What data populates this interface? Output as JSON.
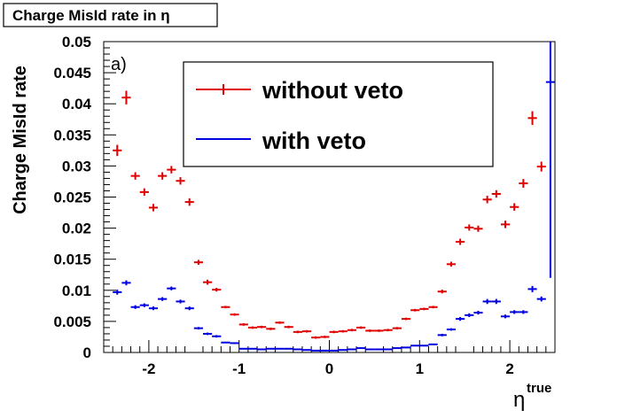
{
  "chart_data": {
    "type": "scatter",
    "title": "Charge MisId rate in η",
    "panel_label": "a)",
    "xlabel": {
      "base": "η",
      "sup": "true"
    },
    "ylabel": "Charge MisId rate",
    "xlim": [
      -2.5,
      2.5
    ],
    "ylim": [
      0,
      0.05
    ],
    "x_ticks": [
      -2,
      -1,
      0,
      1,
      2
    ],
    "x_tick_labels": [
      "-2",
      "-1",
      "0",
      "1",
      "2"
    ],
    "y_ticks": [
      0,
      0.005,
      0.01,
      0.015,
      0.02,
      0.025,
      0.03,
      0.035,
      0.04,
      0.045,
      0.05
    ],
    "y_tick_labels": [
      "0",
      "0.005",
      "0.01",
      "0.015",
      "0.02",
      "0.025",
      "0.03",
      "0.035",
      "0.04",
      "0.045",
      "0.05"
    ],
    "bin_width": 0.1,
    "grid": false,
    "legend_position": "top-center",
    "series": [
      {
        "name": "without veto",
        "color": "#e00000",
        "x": [
          -2.35,
          -2.25,
          -2.15,
          -2.05,
          -1.95,
          -1.85,
          -1.75,
          -1.65,
          -1.55,
          -1.45,
          -1.35,
          -1.25,
          -1.15,
          -1.05,
          -0.95,
          -0.85,
          -0.75,
          -0.65,
          -0.55,
          -0.45,
          -0.35,
          -0.25,
          -0.15,
          -0.05,
          0.05,
          0.15,
          0.25,
          0.35,
          0.45,
          0.55,
          0.65,
          0.75,
          0.85,
          0.95,
          1.05,
          1.15,
          1.25,
          1.35,
          1.45,
          1.55,
          1.65,
          1.75,
          1.85,
          1.95,
          2.05,
          2.15,
          2.25,
          2.35
        ],
        "y": [
          0.0325,
          0.041,
          0.0284,
          0.0258,
          0.0233,
          0.0284,
          0.0294,
          0.0276,
          0.0242,
          0.0145,
          0.0113,
          0.0101,
          0.0073,
          0.0061,
          0.0045,
          0.004,
          0.0041,
          0.0038,
          0.0048,
          0.0041,
          0.0033,
          0.0034,
          0.0024,
          0.0025,
          0.0033,
          0.0034,
          0.0036,
          0.004,
          0.0035,
          0.0035,
          0.0036,
          0.0039,
          0.0054,
          0.0068,
          0.007,
          0.0073,
          0.0098,
          0.0142,
          0.0178,
          0.0201,
          0.0199,
          0.0246,
          0.0255,
          0.0206,
          0.0234,
          0.0272,
          0.0377,
          0.0299
        ],
        "yerr": [
          0.0009,
          0.0011,
          0.0006,
          0.0006,
          0.0006,
          0.0006,
          0.0006,
          0.0006,
          0.0006,
          0.0004,
          0.0004,
          0.0003,
          0.0002,
          0.0002,
          0.0002,
          0.0002,
          0.0002,
          0.0002,
          0.0002,
          0.0002,
          0.0002,
          0.0002,
          0.0002,
          0.0002,
          0.0002,
          0.0002,
          0.0002,
          0.0002,
          0.0002,
          0.0002,
          0.0002,
          0.0002,
          0.0002,
          0.0002,
          0.0002,
          0.0002,
          0.0003,
          0.0004,
          0.0005,
          0.0005,
          0.0005,
          0.0006,
          0.0006,
          0.0006,
          0.0006,
          0.0007,
          0.0011,
          0.0008
        ]
      },
      {
        "name": "with veto",
        "color": "#0000e0",
        "x": [
          -2.35,
          -2.25,
          -2.15,
          -2.05,
          -1.95,
          -1.85,
          -1.75,
          -1.65,
          -1.55,
          -1.45,
          -1.35,
          -1.25,
          -1.15,
          -1.05,
          -0.95,
          -0.85,
          -0.75,
          -0.65,
          -0.55,
          -0.45,
          -0.35,
          -0.25,
          -0.15,
          -0.05,
          0.05,
          0.15,
          0.25,
          0.35,
          0.45,
          0.55,
          0.65,
          0.75,
          0.85,
          0.95,
          1.05,
          1.15,
          1.25,
          1.35,
          1.45,
          1.55,
          1.65,
          1.75,
          1.85,
          1.95,
          2.05,
          2.15,
          2.25,
          2.35,
          2.45
        ],
        "y": [
          0.0097,
          0.0112,
          0.0073,
          0.0076,
          0.0071,
          0.0086,
          0.0103,
          0.0082,
          0.0071,
          0.0039,
          0.003,
          0.0026,
          0.0016,
          0.0015,
          0.0006,
          0.0006,
          0.0005,
          0.0006,
          0.0006,
          0.0006,
          0.0005,
          0.0004,
          0.0003,
          0.0003,
          0.0003,
          0.0004,
          0.0005,
          0.0007,
          0.0005,
          0.0005,
          0.0005,
          0.0007,
          0.0008,
          0.0011,
          0.0011,
          0.0013,
          0.0028,
          0.0037,
          0.0054,
          0.006,
          0.0064,
          0.0082,
          0.0082,
          0.0058,
          0.0065,
          0.0065,
          0.0102,
          0.0086,
          0.0435
        ],
        "yerr": [
          0.0004,
          0.0004,
          0.0003,
          0.0003,
          0.0003,
          0.0003,
          0.0003,
          0.0003,
          0.0003,
          0.0002,
          0.0002,
          0.0002,
          0.0001,
          0.0001,
          0.0001,
          0.0001,
          0.0001,
          0.0001,
          0.0001,
          0.0001,
          0.0001,
          0.0001,
          0.0001,
          0.0001,
          0.0001,
          0.0001,
          0.0001,
          0.0001,
          0.0001,
          0.0001,
          0.0001,
          0.0001,
          0.0001,
          0.0001,
          0.0001,
          0.0001,
          0.0002,
          0.0002,
          0.0003,
          0.0003,
          0.0003,
          0.0004,
          0.0004,
          0.0003,
          0.0003,
          0.0003,
          0.0005,
          0.0004,
          0.0315
        ]
      }
    ]
  }
}
